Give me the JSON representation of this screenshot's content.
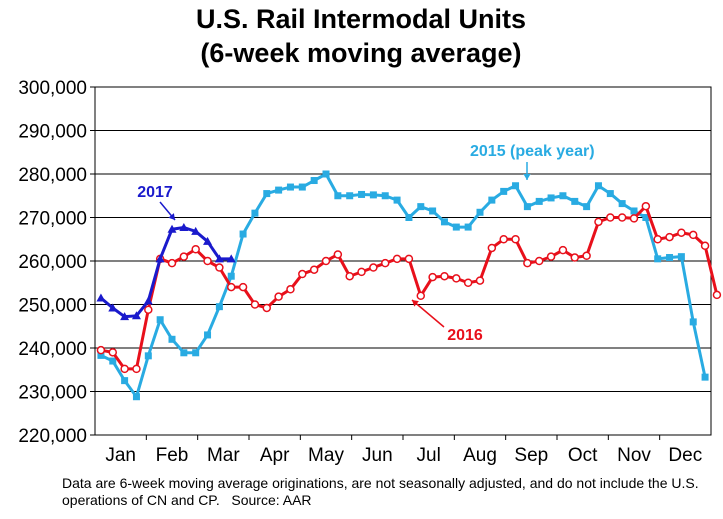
{
  "chart_data": {
    "type": "line",
    "title": [
      "U.S. Rail Intermodal Units",
      "(6-week moving average)"
    ],
    "xlabel": "",
    "ylabel": "",
    "x_tick_labels": [
      "Jan",
      "Feb",
      "Mar",
      "Apr",
      "May",
      "Jun",
      "Jul",
      "Aug",
      "Sep",
      "Oct",
      "Nov",
      "Dec"
    ],
    "y_tick_labels": [
      "220,000",
      "230,000",
      "240,000",
      "250,000",
      "260,000",
      "270,000",
      "280,000",
      "290,000",
      "300,000"
    ],
    "ylim": [
      220000,
      300000
    ],
    "y_ticks": [
      220000,
      230000,
      240000,
      250000,
      260000,
      270000,
      280000,
      290000,
      300000
    ],
    "weeks_per_year": 52,
    "grid": true,
    "series": [
      {
        "name": "2015 (peak year)",
        "color": "#29ABE2",
        "marker": "square",
        "values": [
          238300,
          237000,
          232500,
          228800,
          238200,
          246500,
          242000,
          238900,
          238900,
          243000,
          249500,
          256500,
          266200,
          271000,
          275500,
          276300,
          277000,
          277000,
          278500,
          280000,
          275000,
          275000,
          275300,
          275200,
          275000,
          274000,
          270000,
          272500,
          271500,
          269000,
          267800,
          267800,
          271200,
          274000,
          276000,
          277300,
          272500,
          273700,
          274500,
          275000,
          273700,
          272500,
          277300,
          275500,
          273200,
          271500,
          270000,
          260500,
          260800,
          261000,
          246000,
          233300
        ]
      },
      {
        "name": "2016",
        "color": "#E8101B",
        "marker": "circle",
        "values": [
          239500,
          239000,
          235200,
          235200,
          248800,
          260500,
          259500,
          261000,
          262700,
          260000,
          258500,
          254000,
          254000,
          250000,
          249200,
          251800,
          253500,
          257000,
          258000,
          260000,
          261500,
          256500,
          257500,
          258500,
          259500,
          260500,
          260500,
          252000,
          256300,
          256500,
          256000,
          255000,
          255500,
          263000,
          265000,
          265000,
          259500,
          260000,
          261000,
          262500,
          260800,
          261200,
          269000,
          270000,
          270000,
          269800,
          272600,
          265000,
          265500,
          266500,
          266000,
          263500,
          252200
        ]
      },
      {
        "name": "2017",
        "color": "#1A1ACC",
        "marker": "triangle",
        "values": [
          251500,
          249200,
          247200,
          247400,
          250800,
          260500,
          267300,
          267700,
          266800,
          264500,
          260500,
          260500
        ]
      }
    ],
    "annotations": [
      {
        "text": "2015 (peak year)",
        "color": "#29ABE2",
        "series": "2015 (peak year)"
      },
      {
        "text": "2016",
        "color": "#E8101B",
        "series": "2016"
      },
      {
        "text": "2017",
        "color": "#1A1ACC",
        "series": "2017"
      }
    ]
  },
  "footnote": "Data are 6-week moving average originations, are not seasonally adjusted, and do not include the U.S. operations of CN and CP.   Source: AAR"
}
